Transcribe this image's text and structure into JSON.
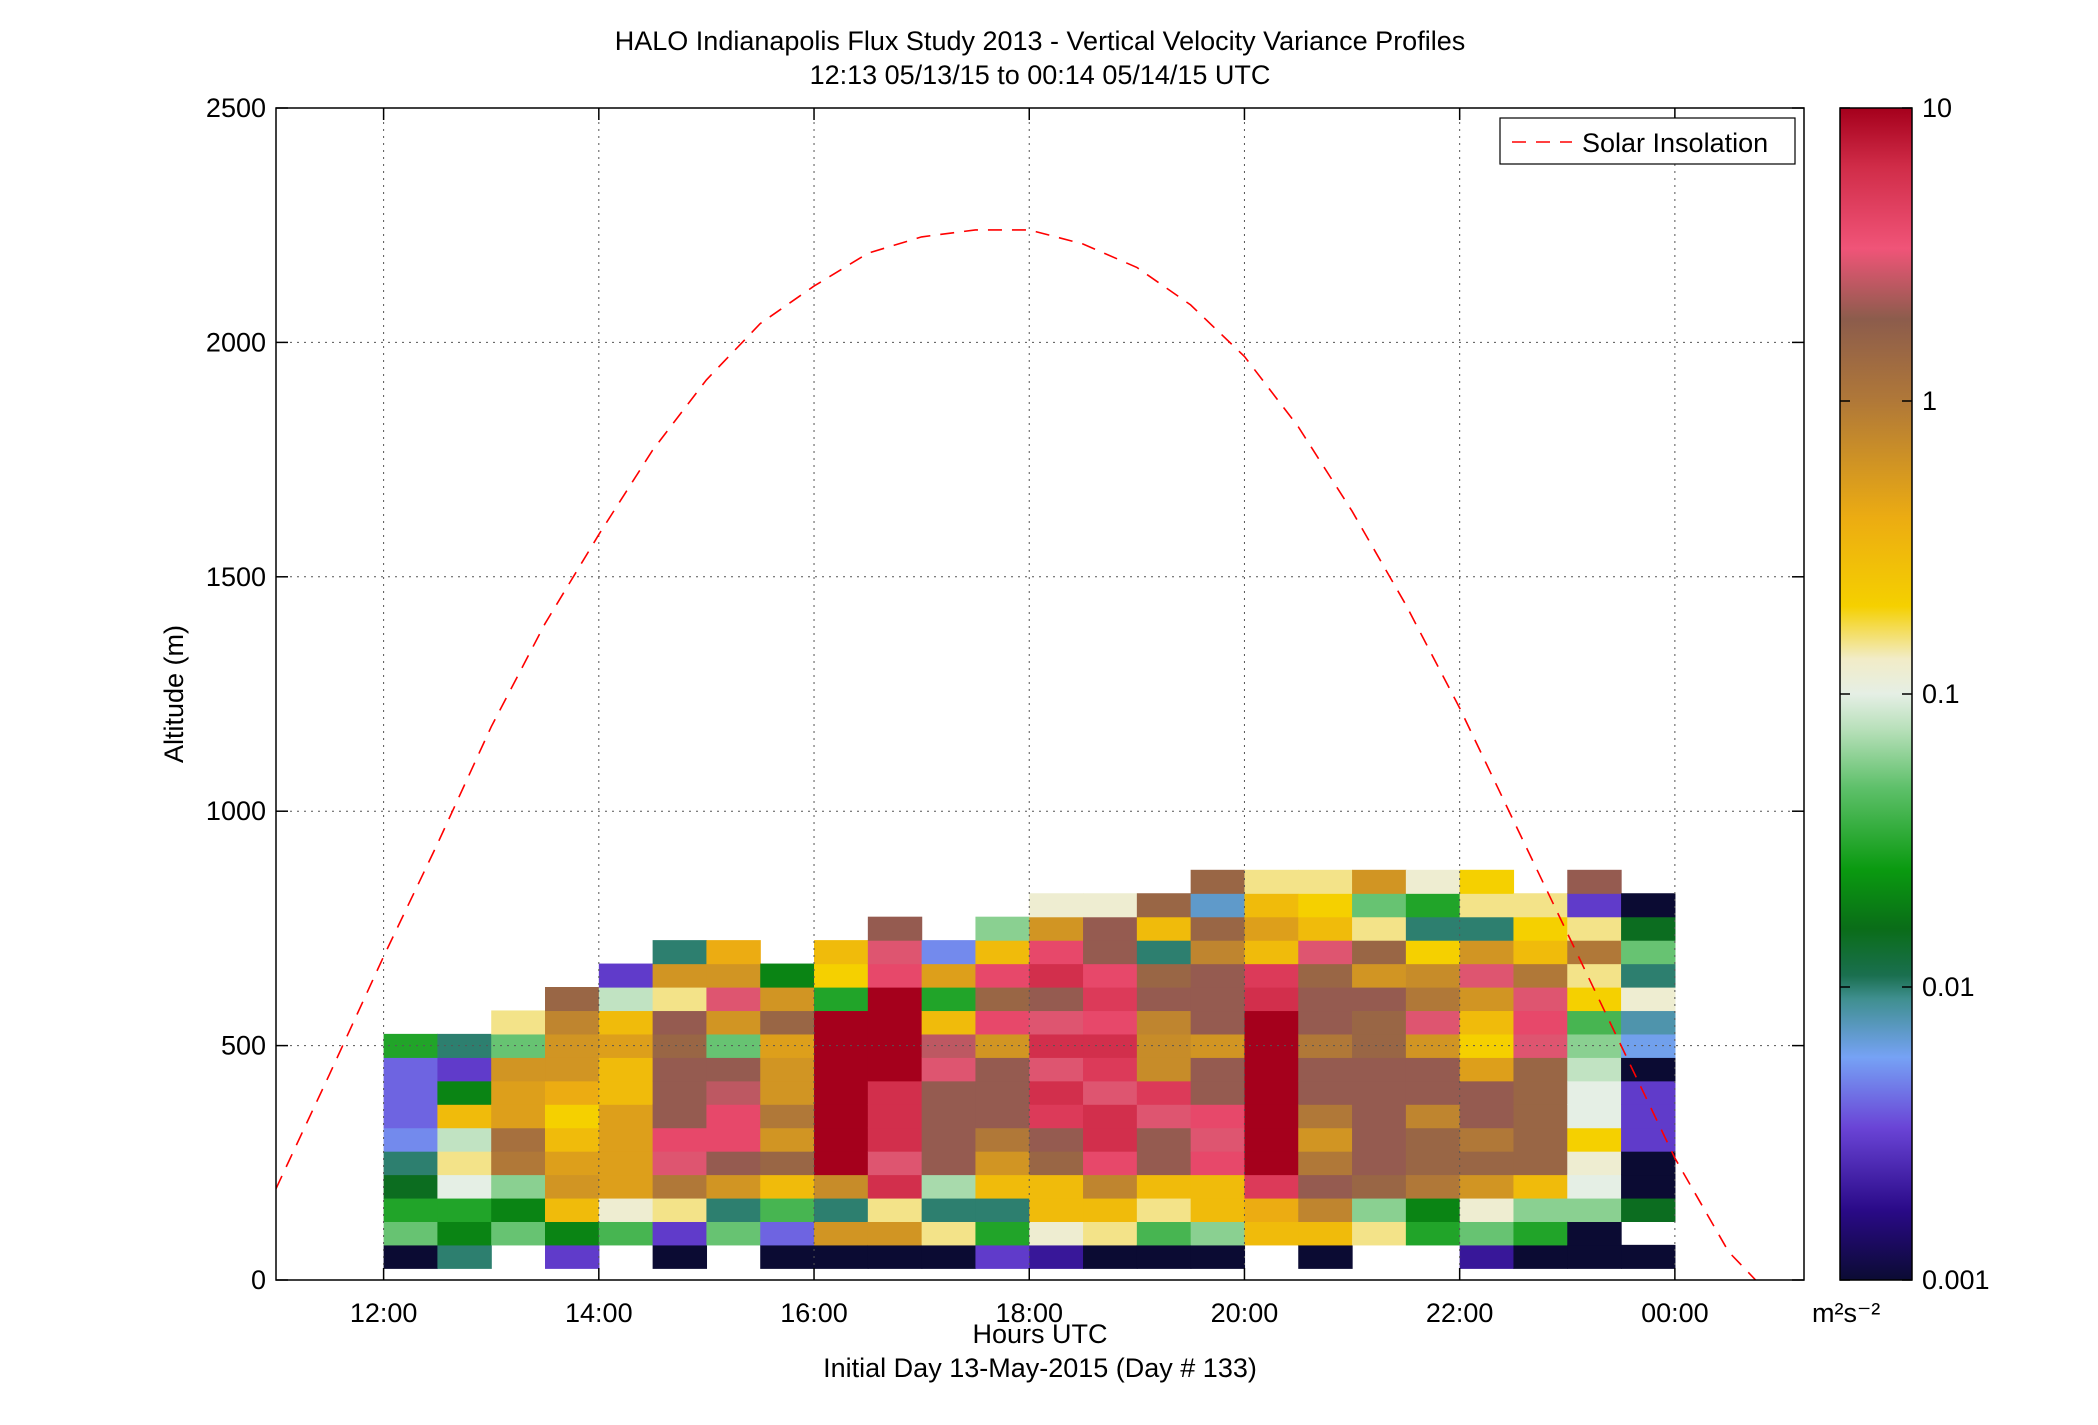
{
  "chart_data": {
    "type": "heatmap",
    "title": "HALO Indianapolis Flux Study 2013 - Vertical Velocity Variance Profiles",
    "subtitle": "12:13 05/13/15 to 00:14 05/14/15  UTC",
    "xlabel": "Hours UTC",
    "xlabel2": "Initial Day 13-May-2015 (Day # 133)",
    "ylabel": "Altitude (m)",
    "xlim": [
      11.0,
      25.2
    ],
    "ylim": [
      0,
      2500
    ],
    "x_ticks": [
      {
        "value": 12,
        "label": "12:00"
      },
      {
        "value": 14,
        "label": "14:00"
      },
      {
        "value": 16,
        "label": "16:00"
      },
      {
        "value": 18,
        "label": "18:00"
      },
      {
        "value": 20,
        "label": "20:00"
      },
      {
        "value": 22,
        "label": "22:00"
      },
      {
        "value": 24,
        "label": "00:00"
      }
    ],
    "y_ticks": [
      {
        "value": 0,
        "label": "0"
      },
      {
        "value": 500,
        "label": "500"
      },
      {
        "value": 1000,
        "label": "1000"
      },
      {
        "value": 1500,
        "label": "1500"
      },
      {
        "value": 2000,
        "label": "2000"
      },
      {
        "value": 2500,
        "label": "2500"
      }
    ],
    "grid": true,
    "grid_style": "dotted",
    "colorbar": {
      "scale": "log",
      "range": [
        0.001,
        10
      ],
      "unit_label": "m²s⁻²",
      "tick_values": [
        0.001,
        0.01,
        0.1,
        1,
        10
      ],
      "tick_labels": [
        "0.001",
        "0.01",
        "0.1",
        "1",
        "10"
      ]
    },
    "heatmap": {
      "time_start": 12.25,
      "time_step": 0.5,
      "alt_start": 50,
      "alt_step": 50,
      "n_cols": 24,
      "n_rows": 17,
      "columns": [
        [
          "0.001",
          "0.05",
          "0.03",
          "0.015",
          "0.01",
          "0.005",
          "0.004",
          "0.004",
          "0.004",
          "0.03",
          null,
          null,
          null,
          null,
          null,
          null,
          null
        ],
        [
          "0.01",
          "0.02",
          "0.03",
          "0.1",
          "0.15",
          "0.08",
          "0.3",
          "0.02",
          "0.003",
          "0.01",
          null,
          null,
          null,
          null,
          null,
          null,
          null
        ],
        [
          null,
          "0.05",
          "0.02",
          "0.06",
          "1",
          "1.2",
          "0.5",
          "0.5",
          "0.6",
          "0.05",
          "0.15",
          null,
          null,
          null,
          null,
          null,
          null
        ],
        [
          "0.003",
          "0.02",
          "0.3",
          "0.6",
          "0.5",
          "0.3",
          "0.2",
          "0.4",
          "0.6",
          "0.6",
          "0.8",
          "1.5",
          null,
          null,
          null,
          null,
          null
        ],
        [
          null,
          "0.04",
          "0.12",
          "0.5",
          "0.5",
          "0.5",
          "0.5",
          "0.3",
          "0.3",
          "0.5",
          "0.3",
          "0.08",
          "0.003",
          null,
          null,
          null,
          null
        ],
        [
          "0.001",
          "0.003",
          "0.15",
          "1",
          "3",
          "4",
          "2",
          "2",
          "2",
          "1.5",
          "2",
          "0.15",
          "0.6",
          "0.01",
          null,
          null,
          null
        ],
        [
          null,
          "0.05",
          "0.01",
          "0.6",
          "2",
          "4",
          "4",
          "2.5",
          "2",
          "0.05",
          "0.6",
          "3",
          "0.6",
          "0.4",
          null,
          null,
          null
        ],
        [
          "0.001",
          "0.004",
          "0.04",
          "0.3",
          "1.5",
          "0.6",
          "1",
          "0.6",
          "0.6",
          "0.5",
          "1.5",
          "0.6",
          "0.02",
          null,
          null,
          null,
          null
        ],
        [
          "0.001",
          "0.6",
          "0.01",
          "0.7",
          "10",
          "10",
          "10",
          "10",
          "10",
          "10",
          "10",
          "0.03",
          "0.2",
          "0.3",
          null,
          null,
          null
        ],
        [
          "0.001",
          "0.6",
          "0.15",
          "6",
          "3",
          "6",
          "6",
          "6",
          "10",
          "10",
          "10",
          "10",
          "4",
          "3",
          "2",
          null,
          null
        ],
        [
          "0.001",
          "0.15",
          "0.01",
          "0.07",
          "2",
          "2",
          "2",
          "2",
          "3",
          "2.5",
          "0.3",
          "0.03",
          "0.5",
          "0.005",
          null,
          null,
          null
        ],
        [
          "0.003",
          "0.03",
          "0.01",
          "0.3",
          "0.6",
          "1",
          "2",
          "2",
          "2",
          "0.6",
          "4",
          "1.5",
          "4",
          "0.3",
          "0.06",
          null,
          null
        ],
        [
          "0.002",
          "0.12",
          "0.3",
          "0.3",
          "1.5",
          "2",
          "5",
          "6",
          "3",
          "6",
          "3",
          "2",
          "6",
          "4",
          "0.6",
          "0.12",
          null
        ],
        [
          "0.001",
          "0.15",
          "0.3",
          "0.8",
          "4",
          "6",
          "6",
          "3",
          "5",
          "6",
          "4",
          "5",
          "4",
          "2",
          "2",
          "0.12",
          null
        ],
        [
          "0.001",
          "0.04",
          "0.15",
          "0.3",
          "2",
          "2",
          "3",
          "5",
          "0.7",
          "0.7",
          "0.8",
          "2",
          "1.5",
          "0.01",
          "0.3",
          "1.5",
          null
        ],
        [
          "0.001",
          "0.06",
          "0.3",
          "0.3",
          "4",
          "3",
          "4",
          "2",
          "2",
          "0.6",
          "2",
          "2",
          "2",
          "0.8",
          "1.5",
          "0.007",
          "1.5"
        ],
        [
          null,
          "0.3",
          "0.4",
          "5",
          "10",
          "10",
          "10",
          "10",
          "10",
          "10",
          "10",
          "6",
          "5",
          "0.3",
          "0.5",
          "0.3",
          "0.15"
        ],
        [
          "0.001",
          "0.3",
          "0.8",
          "2",
          "1",
          "0.6",
          "1",
          "2",
          "2",
          "1",
          "2",
          "2",
          "1.5",
          "3",
          "0.3",
          "0.2",
          "0.15"
        ],
        [
          null,
          "0.15",
          "0.06",
          "1.5",
          "2",
          "2",
          "2",
          "2",
          "2",
          "1.5",
          "1.5",
          "2",
          "0.6",
          "1.5",
          "0.15",
          "0.05",
          "0.6"
        ],
        [
          null,
          "0.03",
          "0.02",
          "1",
          "1.5",
          "1.5",
          "0.8",
          "2",
          "2",
          "0.6",
          "3",
          "1",
          "0.7",
          "0.2",
          "0.01",
          "0.03",
          "0.12"
        ],
        [
          "0.002",
          "0.05",
          "0.12",
          "0.6",
          "1.5",
          "1",
          "2",
          "2",
          "0.5",
          "0.2",
          "0.3",
          "0.6",
          "3",
          "0.6",
          "0.01",
          "0.15",
          "0.2"
        ],
        [
          "0.001",
          "0.03",
          "0.06",
          "0.3",
          "1.5",
          "1.5",
          "1.5",
          "1.5",
          "1.5",
          "3",
          "4",
          "3",
          "1",
          "0.3",
          "0.2",
          "0.15",
          null
        ],
        [
          "0.001",
          "0.001",
          "0.06",
          "0.1",
          "0.12",
          "0.2",
          "0.1",
          "0.1",
          "0.08",
          "0.06",
          "0.04",
          "0.2",
          "0.15",
          "1",
          "0.15",
          "0.003",
          "2"
        ],
        [
          "0.001",
          null,
          "0.015",
          "0.001",
          "0.001",
          "0.003",
          "0.003",
          "0.003",
          "0.001",
          "0.006",
          "0.008",
          "0.12",
          "0.01",
          "0.05",
          "0.015",
          "0.001",
          null
        ]
      ]
    },
    "legend": {
      "placement": "top-right",
      "entries": [
        {
          "label": "Solar Insolation",
          "style": "dashed",
          "color": "#ff0000"
        }
      ]
    },
    "series": [
      {
        "name": "Solar Insolation",
        "style": "dashed",
        "color": "#ff0000",
        "x": [
          11.0,
          11.5,
          12.0,
          12.5,
          13.0,
          13.5,
          14.0,
          14.5,
          15.0,
          15.5,
          16.0,
          16.5,
          17.0,
          17.5,
          18.0,
          18.5,
          19.0,
          19.5,
          20.0,
          20.5,
          21.0,
          21.5,
          22.0,
          22.5,
          23.0,
          23.5,
          24.0,
          24.5,
          24.75
        ],
        "y": [
          195,
          440,
          690,
          930,
          1180,
          1400,
          1590,
          1770,
          1920,
          2040,
          2120,
          2190,
          2225,
          2240,
          2240,
          2210,
          2160,
          2080,
          1970,
          1820,
          1640,
          1440,
          1220,
          980,
          740,
          500,
          260,
          60,
          0
        ]
      }
    ]
  }
}
